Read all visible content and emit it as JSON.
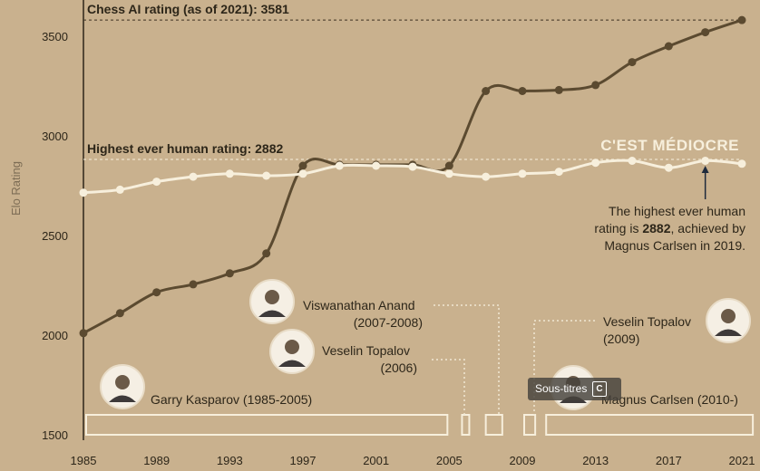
{
  "chart_data": {
    "type": "line",
    "ylabel": "Elo Rating",
    "ylim": [
      1500,
      3600
    ],
    "xlim": [
      1985,
      2022
    ],
    "x_ticks": [
      "1985",
      "1989",
      "1993",
      "1997",
      "2001",
      "2005",
      "2009",
      "2013",
      "2017",
      "2021"
    ],
    "y_ticks": [
      "1500",
      "2000",
      "2500",
      "3000",
      "3500"
    ],
    "grid": false,
    "series": [
      {
        "name": "Chess AI rating",
        "color": "#5b4a30",
        "x": [
          1985,
          1987,
          1989,
          1991,
          1993,
          1995,
          1997,
          1999,
          2001,
          2003,
          2005,
          2007,
          2009,
          2011,
          2013,
          2015,
          2017,
          2019,
          2021
        ],
        "values": [
          2010,
          2110,
          2215,
          2255,
          2310,
          2410,
          2850,
          2855,
          2855,
          2855,
          2850,
          3225,
          3225,
          3230,
          3255,
          3370,
          3450,
          3520,
          3581
        ]
      },
      {
        "name": "Highest human rating",
        "color": "#f7efdc",
        "x": [
          1985,
          1987,
          1989,
          1991,
          1993,
          1995,
          1997,
          1999,
          2001,
          2003,
          2005,
          2007,
          2009,
          2011,
          2013,
          2015,
          2017,
          2019,
          2021
        ],
        "values": [
          2715,
          2730,
          2770,
          2795,
          2810,
          2800,
          2810,
          2850,
          2850,
          2845,
          2810,
          2795,
          2810,
          2820,
          2865,
          2875,
          2840,
          2875,
          2860
        ]
      }
    ],
    "reference_lines": [
      {
        "label": "Chess AI rating (as of 2021): 3581",
        "value": 3581
      },
      {
        "label": "Highest ever human rating: 2882",
        "value": 2882
      }
    ],
    "annotations": {
      "overlay_tag": "C'EST MÉDIOCRE",
      "note_lines": [
        "The highest ever human",
        "rating is ",
        "2882",
        ", achieved by",
        "Magnus Carlsen in 2019."
      ],
      "players": [
        {
          "name": "Garry Kasparov (1985-2005)",
          "start": 1985,
          "end": 2005
        },
        {
          "name": "Viswanathan Anand",
          "years": "(2007-2008)",
          "start": 2006.9,
          "end": 2008
        },
        {
          "name": "Veselin Topalov",
          "years": "(2006)",
          "start": 2005.6,
          "end": 2006.1
        },
        {
          "name": "Veselin Topalov",
          "years": "(2009)",
          "start": 2009,
          "end": 2009.8
        },
        {
          "name": "Magnus Carlsen (2010-)",
          "start": 2010.2,
          "end": 2021.7
        }
      ]
    },
    "colors": {
      "background": "#c9b18e",
      "ai_line": "#5b4a30",
      "human_line": "#f7efdc",
      "text": "#2d2619"
    }
  },
  "ui": {
    "subtitle_pill": "Sous-titres",
    "subtitle_cc": "C"
  }
}
